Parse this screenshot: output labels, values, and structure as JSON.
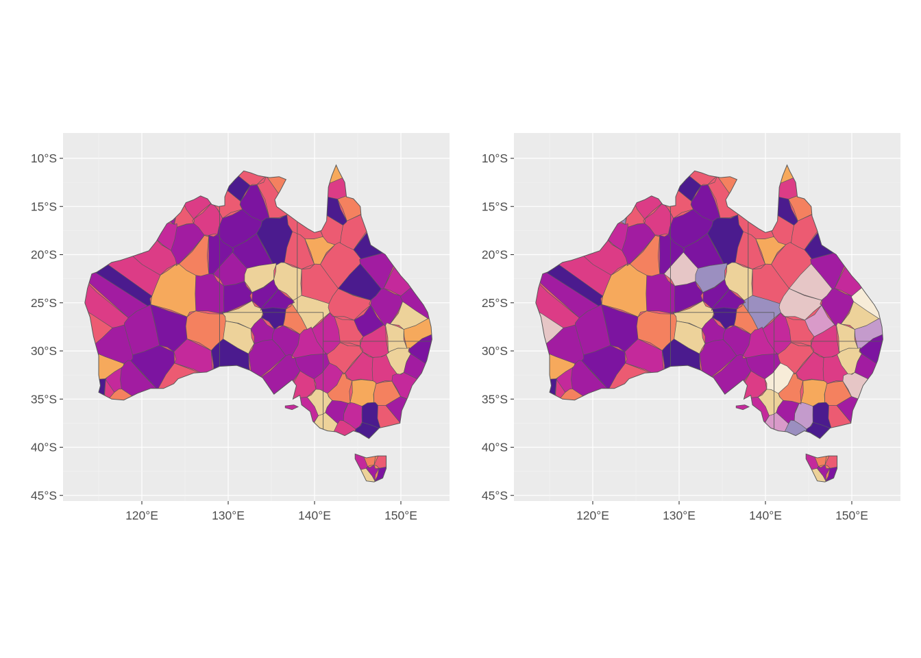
{
  "figure": {
    "layout": "two side-by-side map panels",
    "background": "#ffffff",
    "panel_background": "#ebebeb",
    "gridline_color": "#ffffff",
    "boundary_color": "#595959"
  },
  "axes": {
    "lat_ticks": [
      "10°S",
      "15°S",
      "20°S",
      "25°S",
      "30°S",
      "35°S",
      "40°S",
      "45°S"
    ],
    "lon_ticks": [
      "120°E",
      "130°E",
      "140°E",
      "150°E"
    ]
  },
  "palette": [
    "#4b1b8e",
    "#7c14a0",
    "#a21ca1",
    "#c4299b",
    "#dc3c86",
    "#ec5b72",
    "#f4815f",
    "#f6a95c",
    "#edd29a"
  ],
  "panels": [
    {
      "id": "left",
      "extra_colors": []
    },
    {
      "id": "right",
      "extra_colors": [
        "#9b8fc0",
        "#c49bcc",
        "#e6c6c6",
        "#d99ac9",
        "#f7ecd8"
      ]
    }
  ]
}
